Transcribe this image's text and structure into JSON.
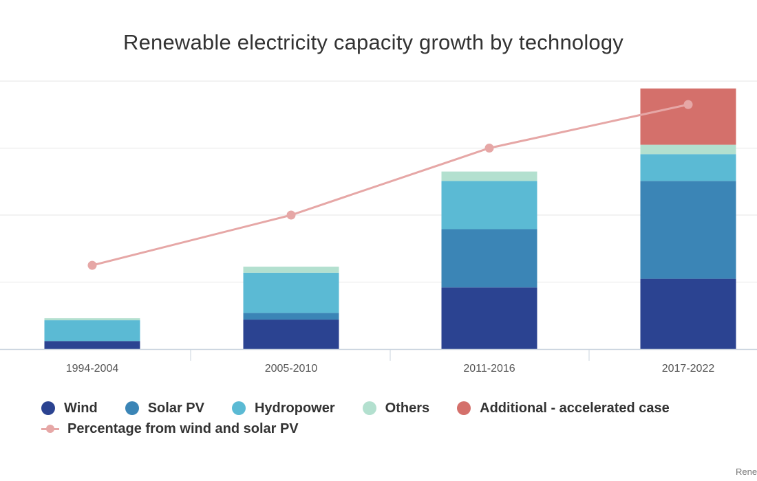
{
  "chart_data": {
    "type": "bar",
    "stacked": true,
    "title": "Renewable electricity capacity growth by technology",
    "xlabel": "",
    "ylabel": "",
    "categories": [
      "1994-2004",
      "2005-2010",
      "2011-2016",
      "2017-2022"
    ],
    "ylim": [
      0,
      400
    ],
    "grid": true,
    "legend_position": "bottom",
    "series": [
      {
        "name": "Wind",
        "color": "#2b4391",
        "values": [
          12,
          44,
          92,
          105
        ]
      },
      {
        "name": "Solar PV",
        "color": "#3b85b6",
        "values": [
          0,
          10,
          87,
          146
        ]
      },
      {
        "name": "Hydropower",
        "color": "#5bbad4",
        "values": [
          31,
          60,
          72,
          40
        ]
      },
      {
        "name": "Others",
        "color": "#b3e0cf",
        "values": [
          3,
          9,
          14,
          14
        ]
      },
      {
        "name": "Additional - accelerated case",
        "color": "#d4706b",
        "values": [
          0,
          0,
          0,
          84
        ]
      }
    ],
    "line_series": {
      "name": "Percentage from wind and solar PV",
      "color": "#e6a7a6",
      "values": [
        125,
        200,
        300,
        365
      ]
    }
  },
  "credit_text": "Rene"
}
